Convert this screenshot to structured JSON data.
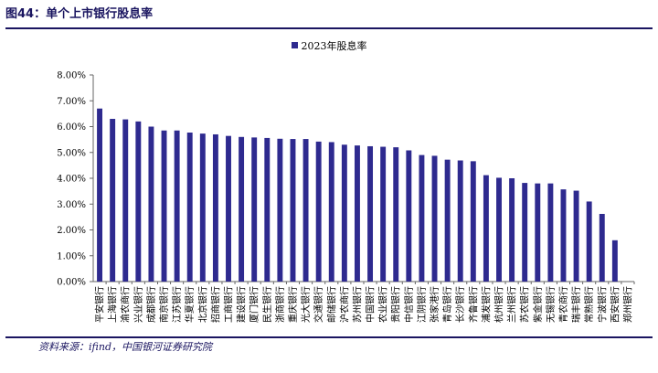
{
  "figure": {
    "title": "图44：单个上市银行股息率",
    "source": "资料来源：ifind，中国银河证券研究院"
  },
  "colors": {
    "bar": "#2e2a8f",
    "title": "#1a1560",
    "axis": "#666666"
  },
  "chart_data": {
    "type": "bar",
    "title": "",
    "xlabel": "",
    "ylabel": "",
    "legend_position": "top-center",
    "grid": false,
    "ylim": [
      0,
      8
    ],
    "yticks": [
      "0.00%",
      "1.00%",
      "2.00%",
      "3.00%",
      "4.00%",
      "5.00%",
      "6.00%",
      "7.00%",
      "8.00%"
    ],
    "categories": [
      "平安银行",
      "上海银行",
      "渝农商行",
      "兴业银行",
      "成都银行",
      "南京银行",
      "江苏银行",
      "华夏银行",
      "北京银行",
      "招商银行",
      "工商银行",
      "建设银行",
      "厦门银行",
      "民生银行",
      "浙商银行",
      "重庆银行",
      "光大银行",
      "交通银行",
      "邮储银行",
      "沪农商行",
      "苏州银行",
      "中国银行",
      "农业银行",
      "贵阳银行",
      "中信银行",
      "江阴银行",
      "张家港行",
      "青岛银行",
      "长沙银行",
      "齐鲁银行",
      "浦发银行",
      "杭州银行",
      "兰州银行",
      "苏农银行",
      "紫金银行",
      "无锡银行",
      "青农商行",
      "瑞丰银行",
      "常熟银行",
      "宁波银行",
      "西安银行",
      "郑州银行"
    ],
    "series": [
      {
        "name": "2023年股息率",
        "values": [
          6.7,
          6.3,
          6.28,
          6.2,
          6.0,
          5.85,
          5.85,
          5.77,
          5.73,
          5.7,
          5.64,
          5.6,
          5.58,
          5.56,
          5.53,
          5.52,
          5.52,
          5.42,
          5.4,
          5.3,
          5.27,
          5.24,
          5.22,
          5.2,
          5.08,
          4.9,
          4.87,
          4.72,
          4.69,
          4.66,
          4.12,
          4.02,
          4.0,
          3.82,
          3.8,
          3.8,
          3.57,
          3.52,
          3.1,
          2.62,
          1.6,
          0.0
        ]
      }
    ]
  }
}
